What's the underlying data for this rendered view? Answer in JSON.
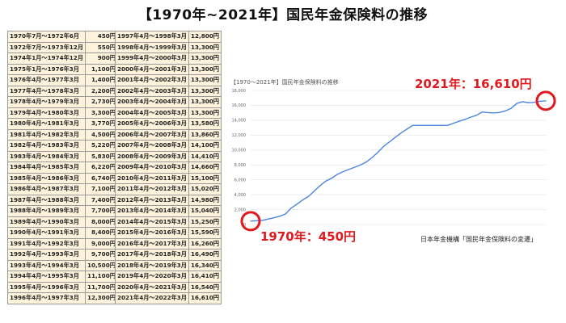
{
  "page_title": "【1970年~2021年】国民年金保険料の推移",
  "table_left": [
    {
      "period": "1970年7月～1972年6月",
      "amount": "450円"
    },
    {
      "period": "1972年7月～1973年12月",
      "amount": "550円"
    },
    {
      "period": "1974年1月～1974年12月",
      "amount": "900円"
    },
    {
      "period": "1975年1月～1976年3月",
      "amount": "1,100円"
    },
    {
      "period": "1976年4月～1977年3月",
      "amount": "1,400円"
    },
    {
      "period": "1977年4月～1978年3月",
      "amount": "2,200円"
    },
    {
      "period": "1978年4月～1979年3月",
      "amount": "2,730円"
    },
    {
      "period": "1979年4月～1980年3月",
      "amount": "3,300円"
    },
    {
      "period": "1980年4月～1981年3月",
      "amount": "3,770円"
    },
    {
      "period": "1981年4月～1982年3月",
      "amount": "4,500円"
    },
    {
      "period": "1982年4月～1983年3月",
      "amount": "5,220円"
    },
    {
      "period": "1983年4月～1984年3月",
      "amount": "5,830円"
    },
    {
      "period": "1984年4月～1985年3月",
      "amount": "6,220円"
    },
    {
      "period": "1985年4月～1986年3月",
      "amount": "6,740円"
    },
    {
      "period": "1986年4月～1987年3月",
      "amount": "7,100円"
    },
    {
      "period": "1987年4月～1988年3月",
      "amount": "7,400円"
    },
    {
      "period": "1988年4月～1989年3月",
      "amount": "7,700円"
    },
    {
      "period": "1989年4月～1990年3月",
      "amount": "8,000円"
    },
    {
      "period": "1990年4月～1991年3月",
      "amount": "8,400円"
    },
    {
      "period": "1991年4月～1992年3月",
      "amount": "9,000円"
    },
    {
      "period": "1992年4月～1993年3月",
      "amount": "9,700円"
    },
    {
      "period": "1993年4月～1994年3月",
      "amount": "10,500円"
    },
    {
      "period": "1994年4月～1995年3月",
      "amount": "11,100円"
    },
    {
      "period": "1995年4月～1996年3月",
      "amount": "11,700円"
    },
    {
      "period": "1996年4月～1997年3月",
      "amount": "12,300円"
    }
  ],
  "table_right": [
    {
      "period": "1997年4月～1998年3月",
      "amount": "12,800円"
    },
    {
      "period": "1998年4月～1999年3月",
      "amount": "13,300円"
    },
    {
      "period": "1999年4月～2000年3月",
      "amount": "13,300円"
    },
    {
      "period": "2000年4月～2001年3月",
      "amount": "13,300円"
    },
    {
      "period": "2001年4月～2002年3月",
      "amount": "13,300円"
    },
    {
      "period": "2002年4月～2003年3月",
      "amount": "13,300円"
    },
    {
      "period": "2003年4月～2004年3月",
      "amount": "13,300円"
    },
    {
      "period": "2004年4月～2005年3月",
      "amount": "13,300円"
    },
    {
      "period": "2005年4月～2006年3月",
      "amount": "13,580円"
    },
    {
      "period": "2006年4月～2007年3月",
      "amount": "13,860円"
    },
    {
      "period": "2007年4月～2008年3月",
      "amount": "14,100円"
    },
    {
      "period": "2008年4月～2009年3月",
      "amount": "14,410円"
    },
    {
      "period": "2009年4月～2010年3月",
      "amount": "14,660円"
    },
    {
      "period": "2010年4月～2011年3月",
      "amount": "15,100円"
    },
    {
      "period": "2011年4月～2012年3月",
      "amount": "15,020円"
    },
    {
      "period": "2012年4月～2013年3月",
      "amount": "14,980円"
    },
    {
      "period": "2013年4月～2014年3月",
      "amount": "15,040円"
    },
    {
      "period": "2014年4月～2015年3月",
      "amount": "15,250円"
    },
    {
      "period": "2015年4月～2016年3月",
      "amount": "15,590円"
    },
    {
      "period": "2016年4月～2017年3月",
      "amount": "16,260円"
    },
    {
      "period": "2017年4月～2018年3月",
      "amount": "16,490円"
    },
    {
      "period": "2018年4月～2019年3月",
      "amount": "16,340円"
    },
    {
      "period": "2019年4月～2020年3月",
      "amount": "16,410円"
    },
    {
      "period": "2020年4月～2021年3月",
      "amount": "16,540円"
    },
    {
      "period": "2021年4月～2022年3月",
      "amount": "16,610円"
    }
  ],
  "annotations": {
    "start": "1970年：450円",
    "end": "2021年：16,610円"
  },
  "source_note": "日本年金機構「国民年金保険料の変遷」",
  "colors": {
    "line": "#4a86e0",
    "highlight": "#e0191e",
    "table_bg": "#fdf3dc",
    "grid": "#e2e2e2"
  },
  "chart_data": {
    "type": "line",
    "title": "【1970〜2021年】国民年金保険料の推移",
    "xlabel": "",
    "ylabel": "",
    "ylim": [
      0,
      18000
    ],
    "yticks": [
      0,
      2000,
      4000,
      6000,
      8000,
      10000,
      12000,
      14000,
      16000,
      18000
    ],
    "ytick_labels": [
      "0",
      "2,000",
      "4,000",
      "6,000",
      "8,000",
      "10,000",
      "12,000",
      "14,000",
      "16,000",
      "18,000"
    ],
    "grid": true,
    "x": [
      1970,
      1972,
      1974,
      1975,
      1976,
      1977,
      1978,
      1979,
      1980,
      1981,
      1982,
      1983,
      1984,
      1985,
      1986,
      1987,
      1988,
      1989,
      1990,
      1991,
      1992,
      1993,
      1994,
      1995,
      1996,
      1997,
      1998,
      1999,
      2000,
      2001,
      2002,
      2003,
      2004,
      2005,
      2006,
      2007,
      2008,
      2009,
      2010,
      2011,
      2012,
      2013,
      2014,
      2015,
      2016,
      2017,
      2018,
      2019,
      2020,
      2021
    ],
    "series": [
      {
        "values": [
          450,
          550,
          900,
          1100,
          1400,
          2200,
          2730,
          3300,
          3770,
          4500,
          5220,
          5830,
          6220,
          6740,
          7100,
          7400,
          7700,
          8000,
          8400,
          9000,
          9700,
          10500,
          11100,
          11700,
          12300,
          12800,
          13300,
          13300,
          13300,
          13300,
          13300,
          13300,
          13300,
          13580,
          13860,
          14100,
          14410,
          14660,
          15100,
          15020,
          14980,
          15040,
          15250,
          15590,
          16260,
          16490,
          16340,
          16410,
          16540,
          16610
        ]
      }
    ]
  }
}
